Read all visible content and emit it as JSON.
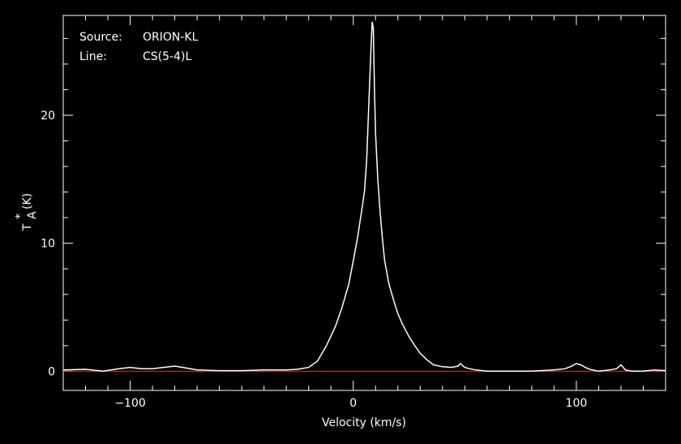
{
  "chart_data": {
    "type": "line",
    "info": {
      "source_key": "Source:",
      "source_value": "ORION-KL",
      "line_key": "Line:",
      "line_value": "CS(5-4)L"
    },
    "xlabel": "Velocity (km/s)",
    "ylabel_main": "T",
    "ylabel_sub": "A",
    "ylabel_sup": "*",
    "ylabel_unit": "(K)",
    "xlim": [
      -130,
      140
    ],
    "ylim": [
      -1.5,
      27.8
    ],
    "x_ticks": [
      -100,
      0,
      100
    ],
    "x_tick_labels": [
      "−100",
      "0",
      "100"
    ],
    "y_ticks": [
      0,
      10,
      20
    ],
    "y_tick_labels": [
      "0",
      "10",
      "20"
    ],
    "x_minor_step": 10,
    "y_minor_step": 2,
    "baseline": 0,
    "colors": {
      "background": "#000000",
      "axes": "#ffffff",
      "spectrum": "#ffffff",
      "baseline": "#ff2020"
    },
    "series": [
      {
        "x": [
          -130,
          -120,
          -112,
          -105,
          -100,
          -95,
          -90,
          -85,
          -80,
          -75,
          -70,
          -60,
          -50,
          -40,
          -30,
          -25,
          -20,
          -16,
          -12,
          -8,
          -5,
          -2,
          0,
          2,
          4,
          5,
          6,
          7,
          8,
          8.5,
          9,
          9.5,
          10,
          11,
          12,
          13,
          14,
          16,
          18,
          20,
          22,
          25,
          28,
          30,
          33,
          36,
          40,
          44,
          47,
          48,
          50,
          52,
          55,
          60,
          65,
          70,
          80,
          90,
          95,
          98,
          100,
          102,
          104,
          106,
          110,
          115,
          118,
          120,
          122,
          125,
          130,
          135,
          140
        ],
        "y": [
          0.1,
          0.15,
          0.0,
          0.2,
          0.3,
          0.2,
          0.2,
          0.3,
          0.4,
          0.25,
          0.1,
          0.05,
          0.05,
          0.1,
          0.1,
          0.15,
          0.3,
          0.8,
          2.0,
          3.5,
          5.0,
          6.8,
          8.6,
          10.5,
          12.8,
          14.0,
          16.5,
          21.0,
          25.5,
          27.3,
          26.8,
          22.0,
          18.5,
          15.0,
          12.5,
          10.5,
          8.7,
          6.8,
          5.6,
          4.5,
          3.7,
          2.7,
          1.9,
          1.4,
          0.9,
          0.5,
          0.35,
          0.3,
          0.4,
          0.6,
          0.3,
          0.2,
          0.1,
          0.0,
          0.0,
          0.0,
          0.0,
          0.1,
          0.2,
          0.4,
          0.6,
          0.5,
          0.3,
          0.15,
          0.0,
          0.1,
          0.2,
          0.5,
          0.1,
          0.0,
          0.0,
          0.1,
          0.05
        ]
      }
    ]
  }
}
